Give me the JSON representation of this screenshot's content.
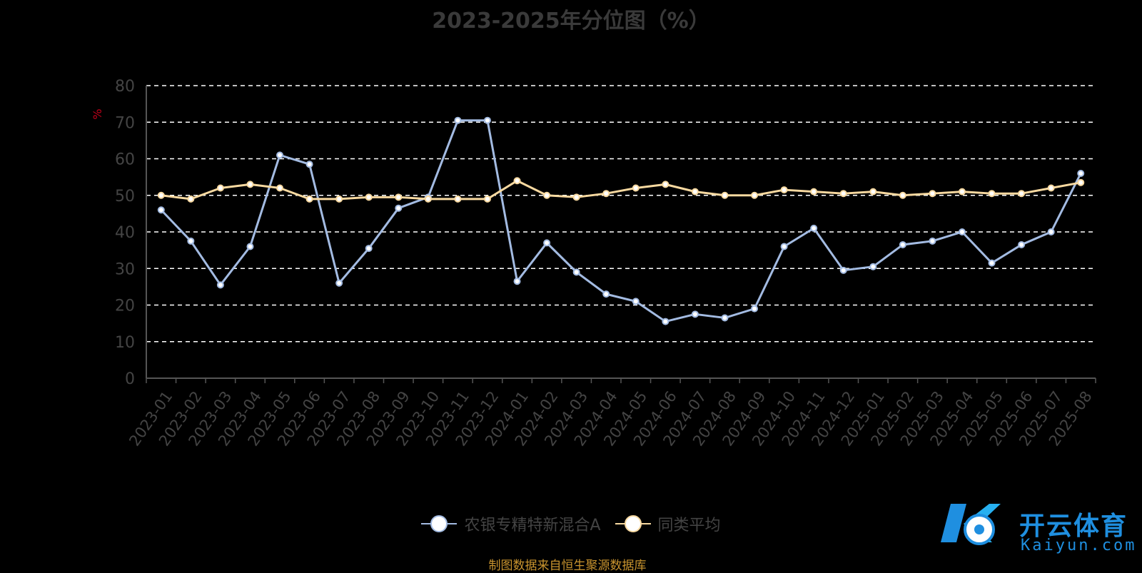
{
  "chart_data": {
    "type": "line",
    "title": "2023-2025年分位图（%）",
    "ylabel": "%",
    "ylim": [
      0,
      80
    ],
    "y_ticks": [
      0,
      10,
      20,
      30,
      40,
      50,
      60,
      70,
      80
    ],
    "grid": true,
    "legend_position": "bottom",
    "categories": [
      "2023-01",
      "2023-02",
      "2023-03",
      "2023-04",
      "2023-05",
      "2023-06",
      "2023-07",
      "2023-08",
      "2023-09",
      "2023-10",
      "2023-11",
      "2023-12",
      "2024-01",
      "2024-02",
      "2024-03",
      "2024-04",
      "2024-05",
      "2024-06",
      "2024-07",
      "2024-08",
      "2024-09",
      "2024-10",
      "2024-11",
      "2024-12",
      "2025-01",
      "2025-02",
      "2025-03",
      "2025-04",
      "2025-05",
      "2025-06",
      "2025-07",
      "2025-08"
    ],
    "series": [
      {
        "name": "农银专精特新混合A",
        "color": "#a3bbe2",
        "values": [
          46,
          37.5,
          25.5,
          36,
          61,
          58.5,
          26,
          35.5,
          46.5,
          49.5,
          70.5,
          70.5,
          26.5,
          37,
          29,
          23,
          21,
          15.5,
          17.5,
          16.5,
          19,
          36,
          41,
          29.5,
          30.5,
          36.5,
          37.5,
          40,
          31.5,
          36.5,
          40,
          56
        ]
      },
      {
        "name": "同类平均",
        "color": "#f8d9a0",
        "values": [
          50,
          49,
          52,
          53,
          52,
          49,
          49,
          49.5,
          49.5,
          49,
          49,
          49,
          54,
          50,
          49.5,
          50.5,
          52,
          53,
          51,
          50,
          50,
          51.5,
          51,
          50.5,
          51,
          50,
          50.5,
          51,
          50.5,
          50.5,
          52,
          53.5
        ]
      }
    ]
  },
  "source_note": "制图数据来自恒生聚源数据库",
  "logo": {
    "name": "开云体育",
    "sub": "Kaiyun.com"
  }
}
